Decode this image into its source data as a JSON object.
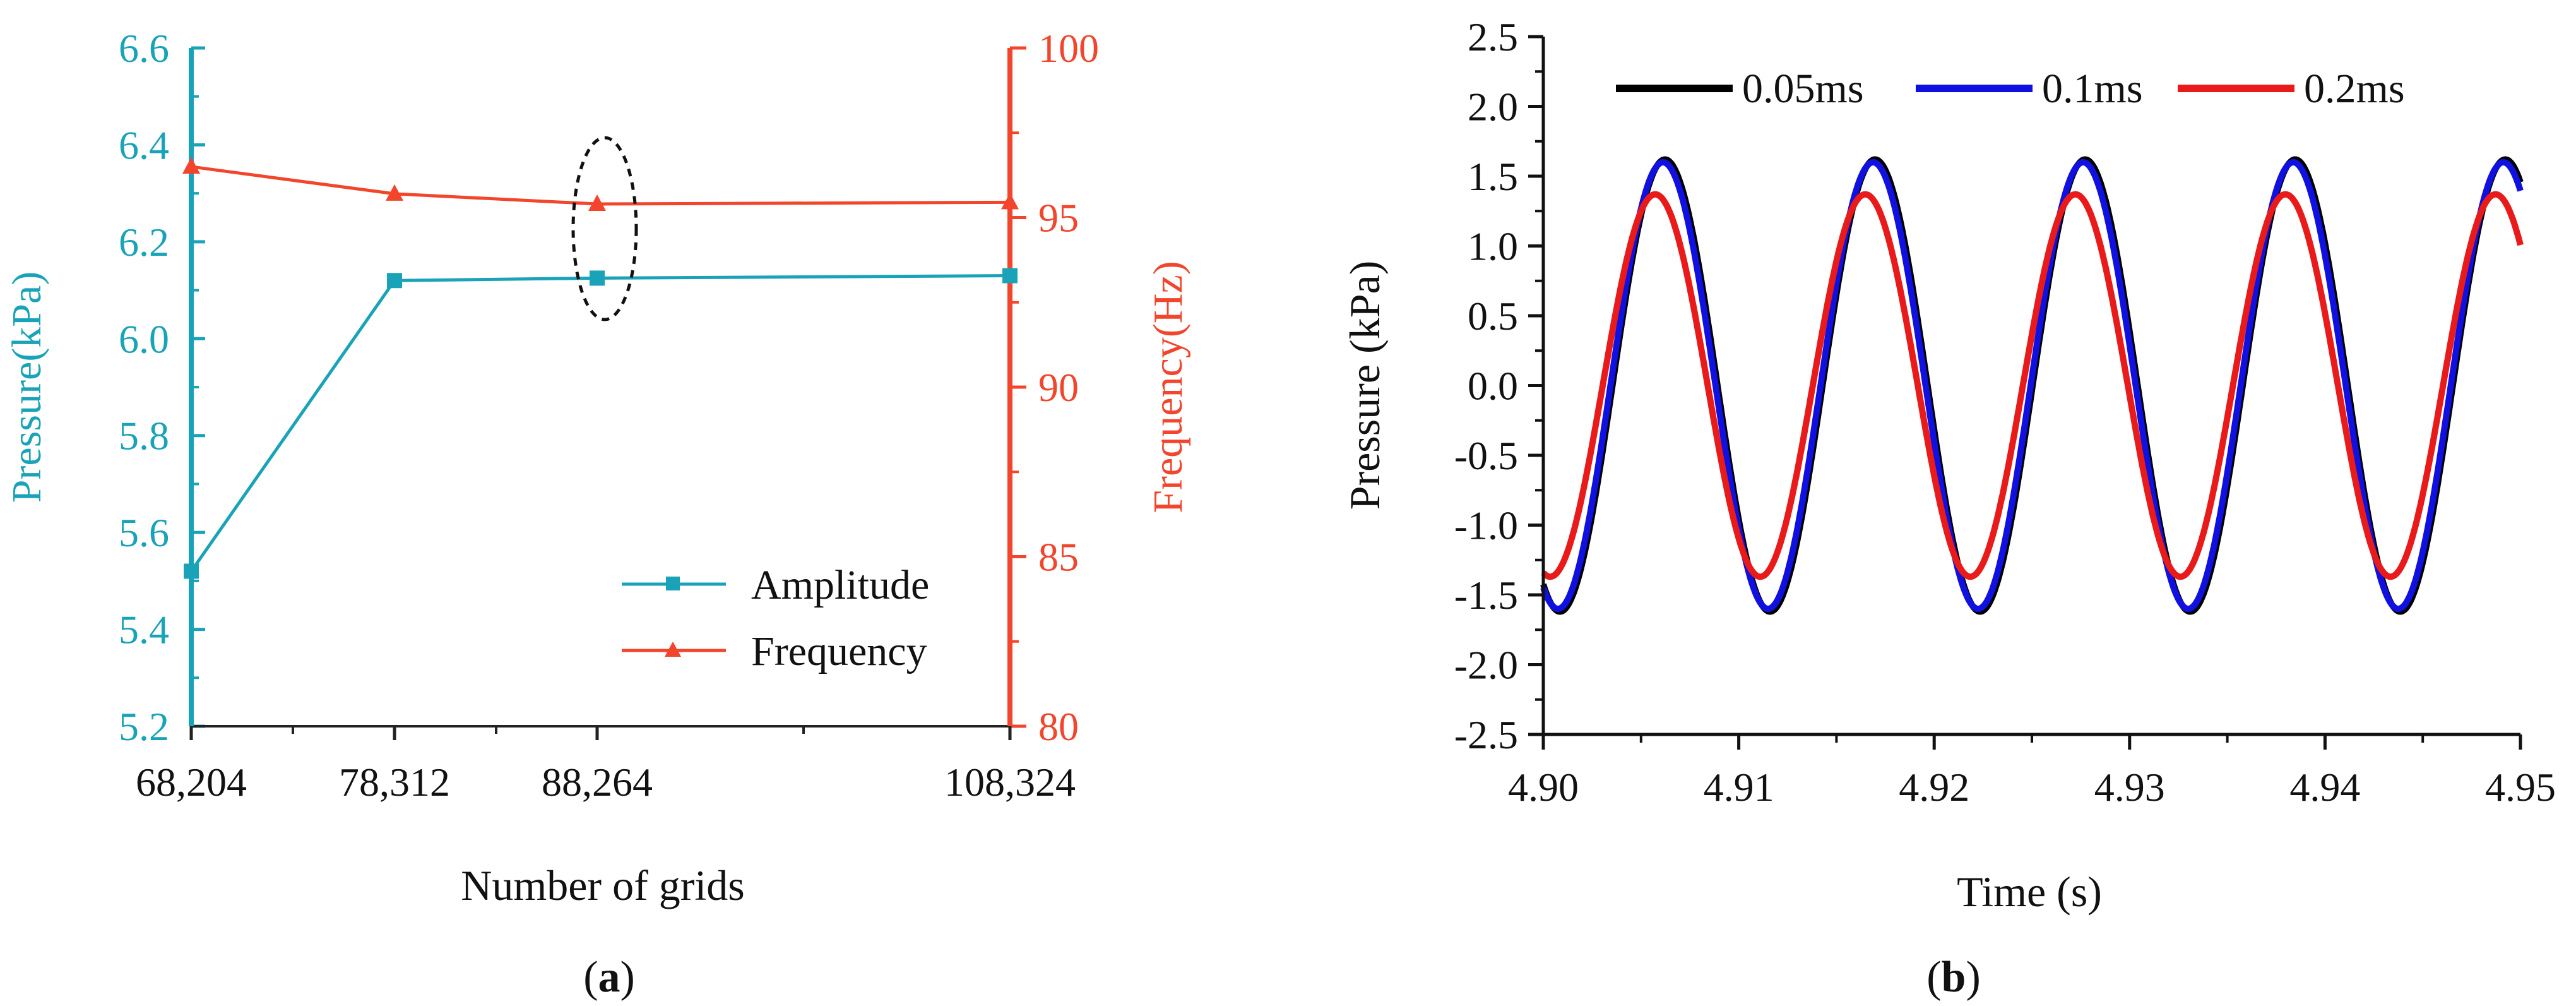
{
  "chart_data": [
    {
      "panel_label": "a",
      "type": "line",
      "title": "",
      "xlabel": "Number of grids",
      "x": [
        68204,
        78312,
        88264,
        108324
      ],
      "x_tick_labels": [
        "68,204",
        "78,312",
        "88,264",
        "108,324"
      ],
      "ylabel_left": "Pressure(kPa)",
      "ylim_left": [
        5.2,
        6.6
      ],
      "y_left_ticks": [
        "5.2",
        "5.4",
        "5.6",
        "5.8",
        "6.0",
        "6.2",
        "6.4",
        "6.6"
      ],
      "ylabel_right": "Frequency(Hz)",
      "ylim_right": [
        80,
        100
      ],
      "y_right_ticks": [
        "80",
        "85",
        "90",
        "95",
        "100"
      ],
      "series": [
        {
          "name": "Amplitude",
          "axis": "left",
          "marker": "square",
          "color": "#1aa3b8",
          "values": [
            5.52,
            6.12,
            6.125,
            6.13
          ]
        },
        {
          "name": "Frequency",
          "axis": "right",
          "marker": "triangle",
          "color": "#f2452c",
          "values": [
            96.5,
            95.7,
            95.4,
            95.45
          ]
        }
      ],
      "annotation": {
        "type": "dashed-ellipse",
        "x_value": 88264
      },
      "legend": "bottom-right",
      "grid": false
    },
    {
      "panel_label": "b",
      "type": "line",
      "title": "",
      "xlabel": "Time (s)",
      "ylabel": "Pressure (kPa)",
      "xlim": [
        4.9,
        4.95
      ],
      "ylim": [
        -2.5,
        2.5
      ],
      "x_ticks": [
        "4.90",
        "4.91",
        "4.92",
        "4.93",
        "4.94",
        "4.95"
      ],
      "y_ticks": [
        "-2.5",
        "-2.0",
        "-1.5",
        "-1.0",
        "-0.5",
        "0.0",
        "0.5",
        "1.0",
        "1.5",
        "2.0",
        "2.5"
      ],
      "series": [
        {
          "name": "0.05ms",
          "color": "#000000",
          "amplitude": 1.62,
          "period": 0.01075,
          "phase_time": 4.90085
        },
        {
          "name": "0.1ms",
          "color": "#1010e0",
          "amplitude": 1.6,
          "period": 0.01075,
          "phase_time": 4.90075
        },
        {
          "name": "0.2ms",
          "color": "#e81a1a",
          "amplitude": 1.37,
          "period": 0.01075,
          "phase_time": 4.90035
        }
      ],
      "legend": "top",
      "grid": false
    }
  ]
}
